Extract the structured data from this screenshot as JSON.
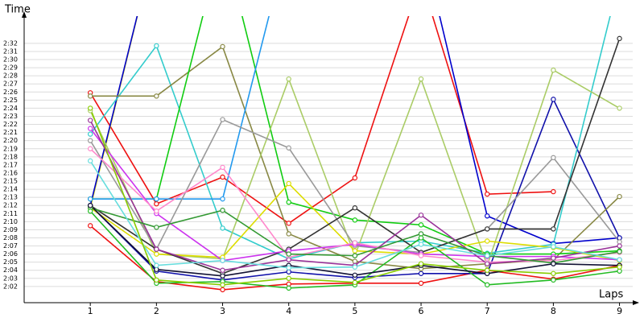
{
  "chart_data": {
    "type": "line",
    "y_label": "Time",
    "x_label": "Laps",
    "x": [
      1,
      2,
      3,
      4,
      5,
      6,
      7,
      8,
      9
    ],
    "xlim": [
      0,
      9.2
    ],
    "xticks": [
      1,
      2,
      3,
      4,
      5,
      6,
      7,
      8,
      9
    ],
    "ylim": [
      120,
      155
    ],
    "yticks": [
      {
        "value": 122,
        "label": "2:02"
      },
      {
        "value": 123,
        "label": "2:03"
      },
      {
        "value": 124,
        "label": "2:04"
      },
      {
        "value": 125,
        "label": "2:05"
      },
      {
        "value": 126,
        "label": "2:06"
      },
      {
        "value": 127,
        "label": "2:07"
      },
      {
        "value": 128,
        "label": "2:08"
      },
      {
        "value": 129,
        "label": "2:09"
      },
      {
        "value": 130,
        "label": "2:10"
      },
      {
        "value": 131,
        "label": "2:11"
      },
      {
        "value": 132,
        "label": "2:12"
      },
      {
        "value": 133,
        "label": "2:13"
      },
      {
        "value": 134,
        "label": "2:14"
      },
      {
        "value": 135,
        "label": "2:15"
      },
      {
        "value": 136,
        "label": "2:16"
      },
      {
        "value": 137,
        "label": "2:17"
      },
      {
        "value": 138,
        "label": "2:18"
      },
      {
        "value": 139,
        "label": "2:19"
      },
      {
        "value": 140,
        "label": "2:20"
      },
      {
        "value": 141,
        "label": "2:21"
      },
      {
        "value": 142,
        "label": "2:22"
      },
      {
        "value": 143,
        "label": "2:23"
      },
      {
        "value": 144,
        "label": "2:24"
      },
      {
        "value": 145,
        "label": "2:25"
      },
      {
        "value": 146,
        "label": "2:26"
      },
      {
        "value": 147,
        "label": "2:27"
      },
      {
        "value": 148,
        "label": "2:28"
      },
      {
        "value": 149,
        "label": "2:29"
      },
      {
        "value": 150,
        "label": "2:30"
      },
      {
        "value": 151,
        "label": "2:31"
      },
      {
        "value": 152,
        "label": "2:32"
      }
    ],
    "grid": true,
    "series": [
      {
        "color": "#ee1111",
        "values": [
          145.9,
          132.2,
          135.5,
          129.8,
          135.4,
          160,
          133.4,
          133.7,
          null
        ]
      },
      {
        "color": "#ee1111",
        "values": [
          129.5,
          122.6,
          121.6,
          122.3,
          122.4,
          122.4,
          124.0,
          122.9,
          124.6
        ]
      },
      {
        "color": "#dddd00",
        "values": [
          131.7,
          165,
          null,
          null,
          null,
          null,
          null,
          null,
          null
        ]
      },
      {
        "color": "#0000cc",
        "values": [
          132.0,
          165,
          null,
          null,
          null,
          null,
          null,
          null,
          null
        ]
      },
      {
        "color": "#0000cc",
        "values": [
          null,
          null,
          null,
          null,
          null,
          165,
          130.7,
          127.3,
          128.0
        ]
      },
      {
        "color": "#1111aa",
        "values": [
          132.0,
          123.9,
          122.8,
          123.8,
          123.1,
          123.6,
          123.6,
          145.1,
          128.0
        ]
      },
      {
        "color": "#33cccc",
        "values": [
          140.8,
          151.7,
          129.2,
          125.4,
          127.4,
          127.6,
          126.1,
          127.2,
          160
        ]
      },
      {
        "color": "#888844",
        "values": [
          145.5,
          145.5,
          151.6,
          128.5,
          125.1,
          124.2,
          124.8,
          125.3,
          133.1
        ]
      },
      {
        "color": "#11cc11",
        "values": [
          132.8,
          132.8,
          165,
          132.4,
          130.2,
          129.6,
          126.0,
          126.0,
          126.4
        ]
      },
      {
        "color": "#2299ee",
        "values": [
          132.8,
          132.8,
          132.8,
          165,
          null,
          null,
          null,
          null,
          null
        ]
      },
      {
        "color": "#aacc66",
        "values": [
          143.7,
          126.0,
          125.4,
          147.6,
          125.8,
          147.6,
          124.6,
          148.7,
          144.0
        ]
      },
      {
        "color": "#dddd00",
        "values": [
          131.7,
          126.0,
          125.6,
          134.7,
          126.4,
          126.0,
          127.6,
          126.8,
          125.2
        ]
      },
      {
        "color": "#999999",
        "values": [
          140.0,
          126.6,
          142.6,
          139.1,
          127.0,
          126.2,
          129.1,
          137.9,
          127.5
        ]
      },
      {
        "color": "#333333",
        "values": [
          132.0,
          126.6,
          123.6,
          126.6,
          131.7,
          126.2,
          129.1,
          129.1,
          152.6
        ]
      },
      {
        "color": "#cc33ee",
        "values": [
          141.5,
          131.0,
          125.2,
          126.4,
          127.2,
          126.0,
          125.7,
          125.7,
          125.3
        ]
      },
      {
        "color": "#ff88cc",
        "values": [
          139.0,
          131.3,
          136.7,
          125.6,
          127.4,
          125.8,
          125.0,
          125.2,
          126.2
        ]
      },
      {
        "color": "#993399",
        "values": [
          142.5,
          126.6,
          124.0,
          125.3,
          124.6,
          130.8,
          124.8,
          125.5,
          127.0
        ]
      },
      {
        "color": "#339933",
        "values": [
          131.7,
          129.3,
          131.4,
          126.0,
          125.8,
          128.5,
          125.8,
          124.9,
          126.3
        ]
      },
      {
        "color": "#22bb22",
        "values": [
          131.3,
          122.4,
          122.6,
          121.8,
          122.2,
          128.0,
          122.2,
          122.8,
          123.9
        ]
      },
      {
        "color": "#111133",
        "values": [
          132.0,
          124.1,
          123.3,
          124.6,
          123.4,
          124.6,
          123.6,
          124.8,
          124.6
        ]
      },
      {
        "color": "#66dddd",
        "values": [
          137.5,
          124.6,
          125.2,
          124.3,
          124.4,
          127.2,
          125.8,
          126.9,
          125.3
        ]
      },
      {
        "color": "#88cc00",
        "values": [
          144.0,
          122.8,
          122.2,
          123.0,
          122.5,
          124.8,
          124.0,
          123.6,
          124.4
        ]
      }
    ]
  }
}
